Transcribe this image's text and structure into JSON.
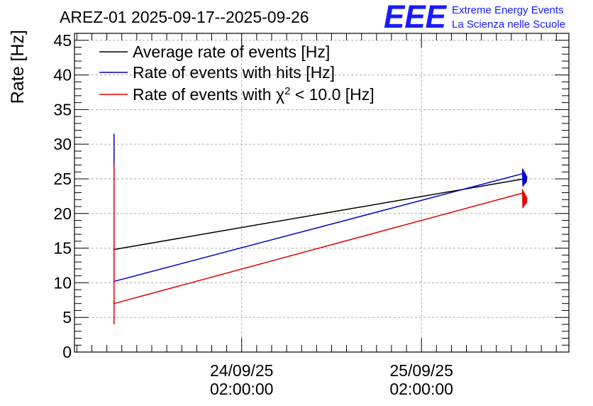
{
  "chart_data": {
    "type": "line",
    "title": "AREZ-01 2025-09-17--2025-09-26",
    "ylabel": "Rate [Hz]",
    "xlabel": "",
    "ylim": [
      0,
      46
    ],
    "yticks": [
      0,
      5,
      10,
      15,
      20,
      25,
      30,
      35,
      40,
      45
    ],
    "xlim_days": [
      0,
      2.75
    ],
    "xticks": [
      {
        "day": 0.93,
        "date": "24/09/25",
        "time": "02:00:00"
      },
      {
        "day": 1.93,
        "date": "25/09/25",
        "time": "02:00:00"
      }
    ],
    "grid": true,
    "legend_position": "top-left",
    "series": [
      {
        "name": "Average rate of events [Hz]",
        "color": "#000000",
        "points": [
          [
            0.22,
            14.8
          ],
          [
            2.5,
            25.0
          ]
        ]
      },
      {
        "name": "Rate of events with hits [Hz]",
        "color": "#0000cc",
        "spike": {
          "day": 0.22,
          "min": 10.2,
          "max": 31.5
        },
        "points": [
          [
            0.22,
            10.2
          ],
          [
            2.5,
            25.8
          ]
        ],
        "end_jitter": [
          23.8,
          26.5
        ]
      },
      {
        "name": "Rate of events with χ² < 10.0 [Hz]",
        "color": "#e00000",
        "spike": {
          "day": 0.22,
          "min": 4.0,
          "max": 27.2
        },
        "points": [
          [
            0.22,
            7.0
          ],
          [
            2.5,
            23.0
          ]
        ],
        "end_jitter": [
          20.7,
          23.5
        ]
      }
    ]
  },
  "logo": {
    "mark": "EEE",
    "line1": "Extreme Energy Events",
    "line2": "La Scienza nelle Scuole",
    "color": "#1a1aff"
  }
}
